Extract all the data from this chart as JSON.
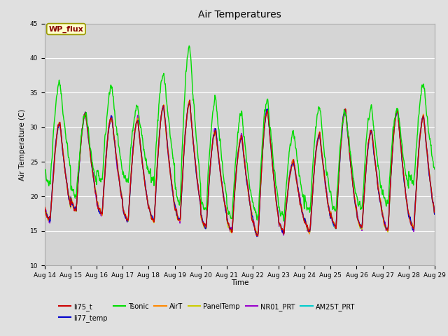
{
  "title": "Air Temperatures",
  "ylabel": "Air Temperature (C)",
  "xlabel": "Time",
  "ylim": [
    10,
    45
  ],
  "yticks": [
    10,
    15,
    20,
    25,
    30,
    35,
    40,
    45
  ],
  "xtick_labels": [
    "Aug 14",
    "Aug 15",
    "Aug 16",
    "Aug 17",
    "Aug 18",
    "Aug 19",
    "Aug 20",
    "Aug 21",
    "Aug 22",
    "Aug 23",
    "Aug 24",
    "Aug 25",
    "Aug 26",
    "Aug 27",
    "Aug 28",
    "Aug 29"
  ],
  "bg_color": "#e0e0e0",
  "plot_bg_color": "#d3d3d3",
  "series": {
    "li75_t": {
      "color": "#cc0000",
      "lw": 0.9,
      "zorder": 5
    },
    "li77_temp": {
      "color": "#0000cc",
      "lw": 0.9,
      "zorder": 5
    },
    "Tsonic": {
      "color": "#00dd00",
      "lw": 1.0,
      "zorder": 6
    },
    "AirT": {
      "color": "#ff8800",
      "lw": 0.9,
      "zorder": 5
    },
    "PanelTemp": {
      "color": "#cccc00",
      "lw": 0.9,
      "zorder": 5
    },
    "NR01_PRT": {
      "color": "#9900cc",
      "lw": 0.9,
      "zorder": 5
    },
    "AM25T_PRT": {
      "color": "#00cccc",
      "lw": 1.1,
      "zorder": 4
    }
  },
  "annotation_text": "WP_flux",
  "grid_color": "#c0c0c0",
  "band_color": "#cccccc"
}
